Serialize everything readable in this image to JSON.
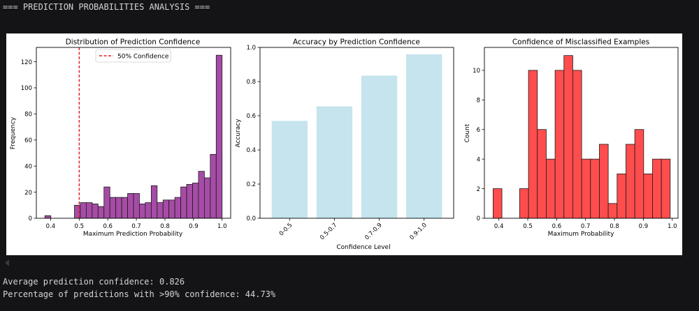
{
  "console": {
    "header": "=== PREDICTION PROBABILITIES ANALYSIS ===",
    "average_confidence": "Average prediction confidence: 0.826",
    "high_confidence_pct": "Percentage of predictions with >90% confidence: 44.73%"
  },
  "colors": {
    "background": "#141416",
    "hist_fill": "#a64ca6",
    "acc_fill": "#add8e6",
    "mis_fill": "#ff4d4d",
    "ref_line": "#e31a1c"
  },
  "chart_data": [
    {
      "type": "bar",
      "subtype": "histogram",
      "title": "Distribution of Prediction Confidence",
      "xlabel": "Maximum Prediction Probability",
      "ylabel": "Frequency",
      "bin_start": 0.38,
      "bin_end": 1.0,
      "values": [
        2,
        0,
        0,
        0,
        0,
        10,
        12,
        12,
        11,
        9,
        24,
        16,
        16,
        16,
        19,
        19,
        11,
        12,
        25,
        12,
        14,
        14,
        16,
        24,
        26,
        27,
        36,
        31,
        49,
        125
      ],
      "xlim": [
        0.35,
        1.03
      ],
      "ylim": [
        0,
        131
      ],
      "xticks": [
        0.4,
        0.5,
        0.6,
        0.7,
        0.8,
        0.9,
        1.0
      ],
      "xtick_labels": [
        "0.4",
        "0.5",
        "0.6",
        "0.7",
        "0.8",
        "0.9",
        "1.0"
      ],
      "yticks": [
        0,
        20,
        40,
        60,
        80,
        100,
        120
      ],
      "ytick_labels": [
        "0",
        "20",
        "40",
        "60",
        "80",
        "100",
        "120"
      ],
      "reference_line": {
        "x": 0.5,
        "label": "50% Confidence"
      },
      "legend": {
        "entries": [
          "50% Confidence"
        ],
        "placement": "upper-center"
      },
      "grid": false
    },
    {
      "type": "bar",
      "title": "Accuracy by Prediction Confidence",
      "xlabel": "Confidence Level",
      "ylabel": "Accuracy",
      "categories": [
        "0-0.5",
        "0.5-0.7",
        "0.7-0.9",
        "0.9-1.0"
      ],
      "values": [
        0.57,
        0.655,
        0.835,
        0.96
      ],
      "ylim": [
        0,
        1.0
      ],
      "yticks": [
        0.0,
        0.2,
        0.4,
        0.6,
        0.8,
        1.0
      ],
      "ytick_labels": [
        "0.0",
        "0.2",
        "0.4",
        "0.6",
        "0.8",
        "1.0"
      ],
      "grid": false
    },
    {
      "type": "bar",
      "subtype": "histogram",
      "title": "Confidence of Misclassified Examples",
      "xlabel": "Maximum Probability",
      "ylabel": "Count",
      "bin_start": 0.38,
      "bin_end": 0.993,
      "values": [
        2,
        0,
        0,
        2,
        10,
        6,
        4,
        10,
        11,
        10,
        4,
        4,
        5,
        1,
        3,
        5,
        6,
        3,
        4,
        4
      ],
      "xlim": [
        0.35,
        1.02
      ],
      "ylim": [
        0,
        11.55
      ],
      "xticks": [
        0.4,
        0.5,
        0.6,
        0.7,
        0.8,
        0.9,
        1.0
      ],
      "xtick_labels": [
        "0.4",
        "0.5",
        "0.6",
        "0.7",
        "0.8",
        "0.9",
        "1.0"
      ],
      "yticks": [
        0,
        2,
        4,
        6,
        8,
        10
      ],
      "ytick_labels": [
        "0",
        "2",
        "4",
        "6",
        "8",
        "10"
      ],
      "grid": false
    }
  ]
}
